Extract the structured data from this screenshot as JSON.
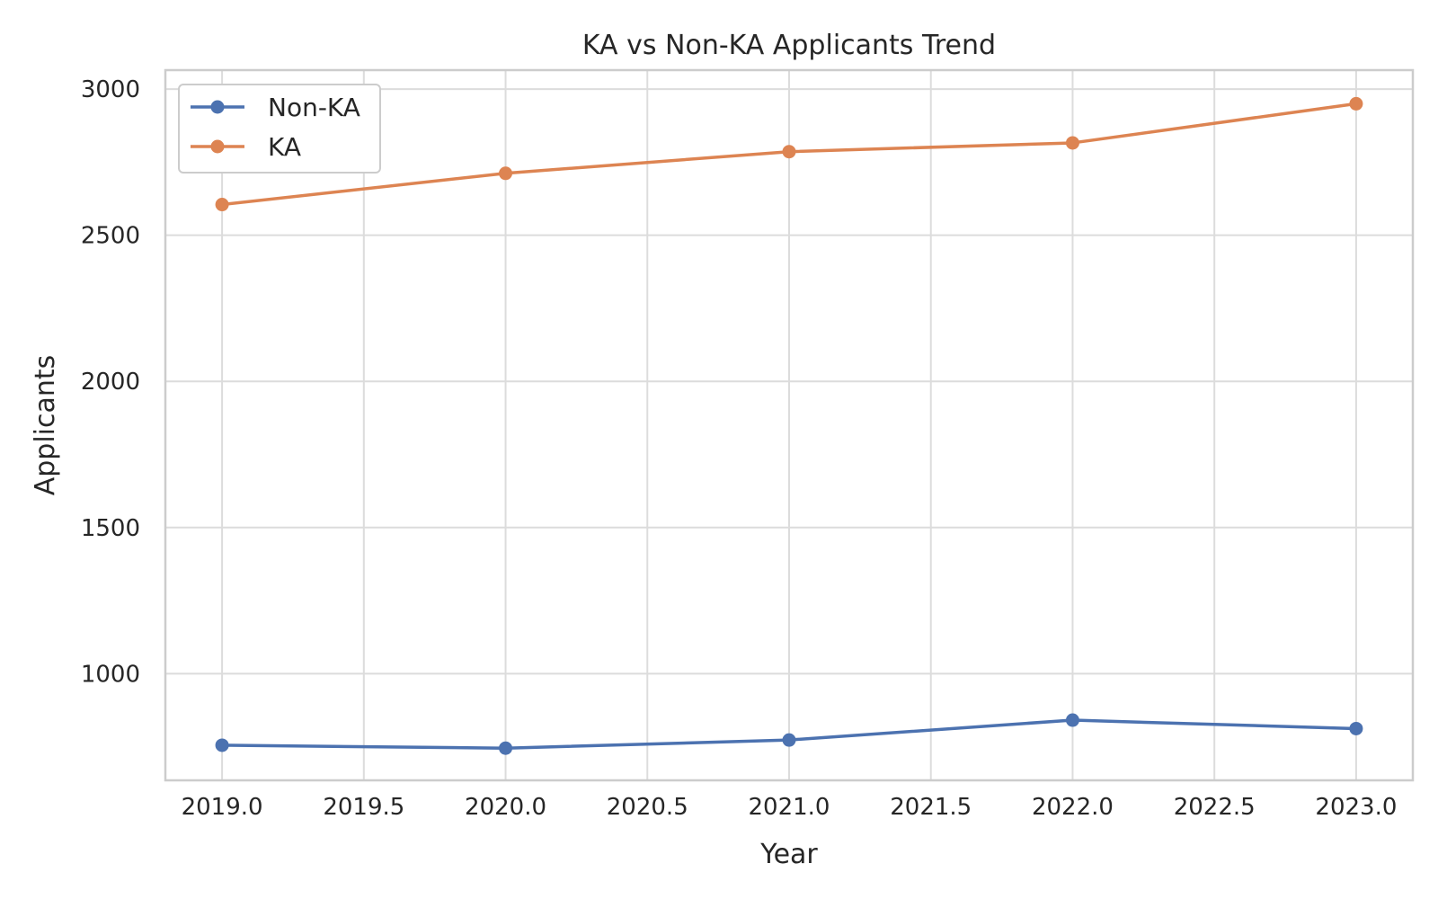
{
  "chart_data": {
    "type": "line",
    "title": "KA vs Non-KA Applicants Trend",
    "xlabel": "Year",
    "ylabel": "Applicants",
    "x": [
      2019,
      2020,
      2021,
      2022,
      2023
    ],
    "xlim": [
      2018.8,
      2023.2
    ],
    "ylim": [
      635,
      3065
    ],
    "x_ticks": [
      2019.0,
      2019.5,
      2020.0,
      2020.5,
      2021.0,
      2021.5,
      2022.0,
      2022.5,
      2023.0
    ],
    "x_tick_labels": [
      "2019.0",
      "2019.5",
      "2020.0",
      "2020.5",
      "2021.0",
      "2021.5",
      "2022.0",
      "2022.5",
      "2023.0"
    ],
    "y_ticks": [
      1000,
      1500,
      2000,
      2500,
      3000
    ],
    "y_tick_labels": [
      "1000",
      "1500",
      "2000",
      "2500",
      "3000"
    ],
    "grid": true,
    "legend_position": "top-left",
    "series": [
      {
        "name": "Non-KA",
        "color": "#4c72b0",
        "values": [
          755,
          745,
          773,
          841,
          812
        ]
      },
      {
        "name": "KA",
        "color": "#dd8452",
        "values": [
          2605,
          2712,
          2786,
          2816,
          2950
        ]
      }
    ]
  }
}
